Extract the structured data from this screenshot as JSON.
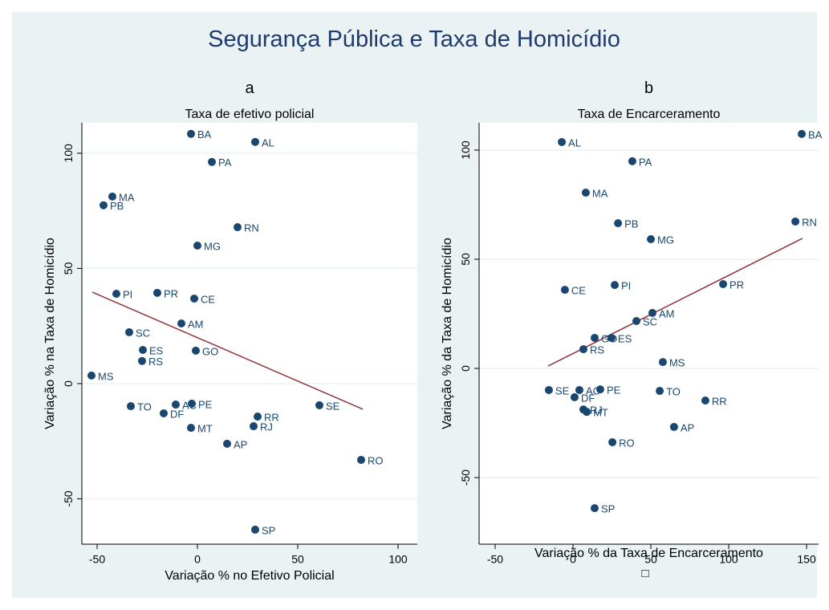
{
  "title": "Segurança Pública e Taxa de Homicídio",
  "note": "□",
  "chart_data": [
    {
      "type": "scatter",
      "panel": "a",
      "subtitle": "Taxa de efetivo policial",
      "xlabel": "Variação % no Efetivo Policial",
      "ylabel": "Variação % na Taxa de Homicídio",
      "xlim": [
        -57.6,
        109.6
      ],
      "ylim": [
        -69.7,
        113.2
      ],
      "xticks": [
        -50,
        0,
        50,
        100
      ],
      "yticks": [
        -50,
        0,
        50,
        100
      ],
      "grid": true,
      "series": [
        {
          "color": "#1a476f",
          "labels": [
            "BA",
            "AL",
            "PA",
            "MA",
            "PB",
            "RN",
            "MG",
            "PI",
            "PR",
            "CE",
            "AM",
            "SC",
            "ES",
            "GO",
            "RS",
            "MS",
            "TO",
            "AC",
            "PE",
            "DF",
            "SE",
            "RR",
            "RJ",
            "MT",
            "AP",
            "RO",
            "SP"
          ],
          "x": [
            -3.2,
            28.8,
            7.2,
            -42.4,
            -46.8,
            20,
            0,
            -40.4,
            -20,
            -1.6,
            -8,
            -34,
            -27.2,
            -0.8,
            -27.6,
            -52.8,
            -33.2,
            -10.8,
            -2.8,
            -16.8,
            60.8,
            30,
            28,
            -3.2,
            14.8,
            81.6,
            28.8
          ],
          "values": [
            108.4,
            104.9,
            96.2,
            81.2,
            77.4,
            67.9,
            59.9,
            39.0,
            39.4,
            36.9,
            26.1,
            22.3,
            14.6,
            14.3,
            9.8,
            3.5,
            -9.8,
            -9.1,
            -8.7,
            -12.9,
            -9.4,
            -14.3,
            -18.5,
            -19.2,
            -26.1,
            -33.1,
            -63.4
          ]
        }
      ],
      "fit_line": {
        "color": "#90353b",
        "x": [
          -52.4,
          82.4
        ],
        "values": [
          39.7,
          -11.1
        ]
      }
    },
    {
      "type": "scatter",
      "panel": "b",
      "subtitle": "Taxa de Encarceramento",
      "xlabel": "Variação % da Taxa de Encarceramento",
      "ylabel": "Variação % da Taxa de Homicídio",
      "xlim": [
        -60.3,
        157.7
      ],
      "ylim": [
        -80.5,
        112.5
      ],
      "xticks": [
        -50,
        0,
        50,
        100,
        150
      ],
      "yticks": [
        -50,
        0,
        50,
        100
      ],
      "grid": true,
      "series": [
        {
          "color": "#1a476f",
          "labels": [
            "BA",
            "AL",
            "PA",
            "MA",
            "PB",
            "RN",
            "MG",
            "CE",
            "PI",
            "PR",
            "AM",
            "SC",
            "GO",
            "ES",
            "RS",
            "MS",
            "SE",
            "AC",
            "PE",
            "DF",
            "TO",
            "RR",
            "RJ",
            "MT",
            "AP",
            "RO",
            "SP"
          ],
          "x": [
            146.9,
            -7.2,
            38.1,
            8.2,
            28.9,
            142.8,
            50,
            -5.2,
            26.8,
            96.4,
            51,
            40.7,
            13.9,
            24.7,
            6.7,
            57.7,
            -15.5,
            4.1,
            17.5,
            1,
            55.7,
            85,
            6.7,
            8.8,
            64.9,
            25.3,
            13.9
          ],
          "values": [
            107.4,
            103.7,
            94.9,
            80.5,
            66.5,
            67.3,
            59.2,
            36.0,
            38.2,
            38.6,
            25.4,
            21.7,
            14.0,
            14.0,
            8.8,
            2.9,
            -9.9,
            -9.9,
            -9.6,
            -13.2,
            -10.3,
            -14.7,
            -18.8,
            -19.9,
            -26.8,
            -33.8,
            -64
          ]
        }
      ],
      "fit_line": {
        "color": "#90353b",
        "x": [
          -16,
          147.4
        ],
        "values": [
          1.1,
          59.6
        ]
      }
    }
  ]
}
